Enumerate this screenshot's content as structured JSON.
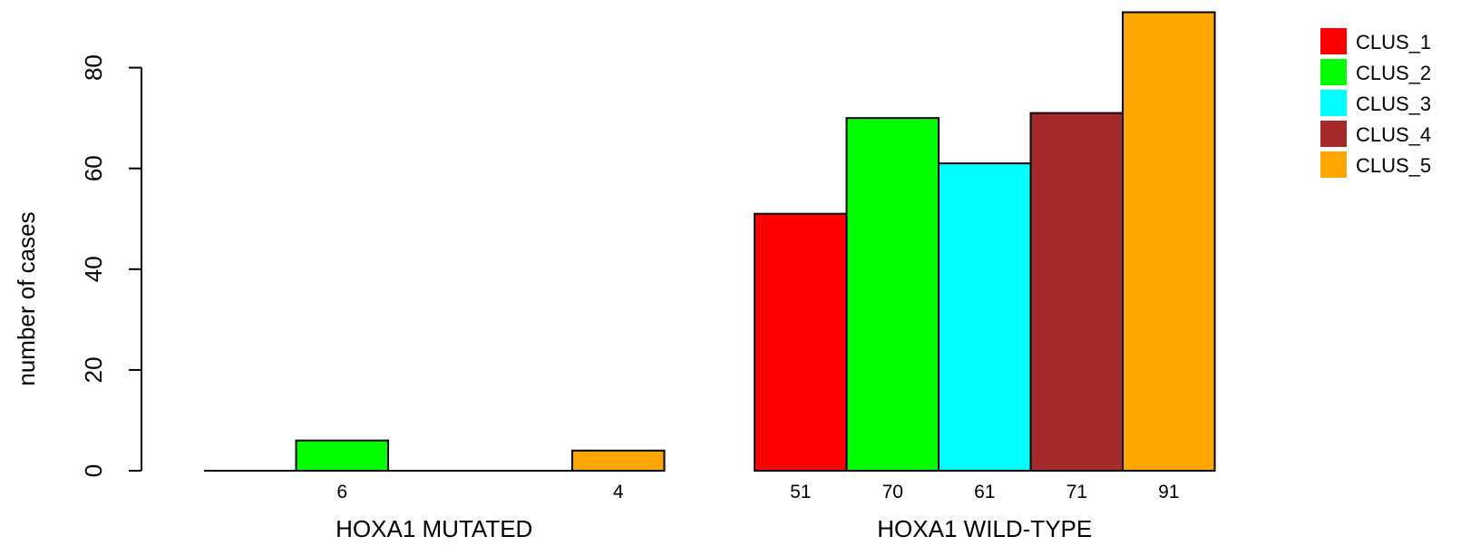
{
  "chart_data": {
    "type": "bar",
    "title": "",
    "xlabel": "",
    "ylabel": "number of cases",
    "ylim": [
      0,
      92
    ],
    "yticks": [
      0,
      20,
      40,
      60,
      80
    ],
    "groups": [
      {
        "label": "HOXA1 MUTATED",
        "values": [
          0,
          6,
          0,
          0,
          4
        ]
      },
      {
        "label": "HOXA1 WILD-TYPE",
        "values": [
          51,
          70,
          61,
          71,
          91
        ]
      }
    ],
    "series": [
      {
        "name": "CLUS_1",
        "color": "#ff0000"
      },
      {
        "name": "CLUS_2",
        "color": "#00ff00"
      },
      {
        "name": "CLUS_3",
        "color": "#00ffff"
      },
      {
        "name": "CLUS_4",
        "color": "#a52a2a"
      },
      {
        "name": "CLUS_5",
        "color": "#ffa500"
      }
    ],
    "count_labels": [
      {
        "group": 0,
        "series": 1,
        "text": "6"
      },
      {
        "group": 0,
        "series": 4,
        "text": "4"
      },
      {
        "group": 1,
        "series": 0,
        "text": "51"
      },
      {
        "group": 1,
        "series": 1,
        "text": "70"
      },
      {
        "group": 1,
        "series": 2,
        "text": "61"
      },
      {
        "group": 1,
        "series": 3,
        "text": "71"
      },
      {
        "group": 1,
        "series": 4,
        "text": "91"
      }
    ],
    "grid": false,
    "legend_position": "top-right"
  }
}
